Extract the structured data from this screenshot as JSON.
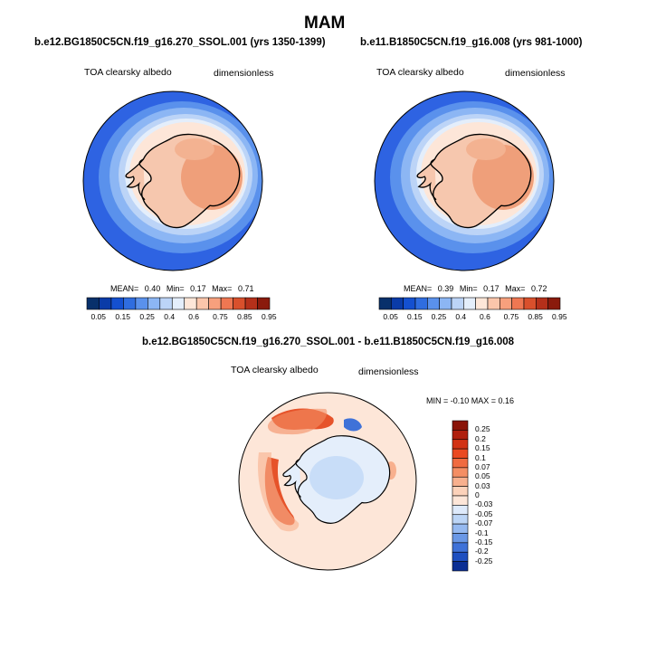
{
  "page_title": "MAM",
  "panels": [
    {
      "case_title": "b.e12.BG1850C5CN.f19_g16.270_SSOL.001 (yrs 1350-1399)",
      "variable": "TOA clearsky albedo",
      "units": "dimensionless",
      "stats": {
        "mean_label": "MEAN=",
        "mean": "0.40",
        "min_label": "Min=",
        "min": "0.17",
        "max_label": "Max=",
        "max": "0.71"
      }
    },
    {
      "case_title": "b.e11.B1850C5CN.f19_g16.008 (yrs 981-1000)",
      "variable": "TOA clearsky albedo",
      "units": "dimensionless",
      "stats": {
        "mean_label": "MEAN=",
        "mean": "0.39",
        "min_label": "Min=",
        "min": "0.17",
        "max_label": "Max=",
        "max": "0.72"
      }
    },
    {
      "case_title": "b.e12.BG1850C5CN.f19_g16.270_SSOL.001 - b.e11.B1850C5CN.f19_g16.008",
      "variable": "TOA clearsky albedo",
      "units": "dimensionless",
      "stats": {
        "text": "MIN = -0.10 MAX =  0.16"
      }
    }
  ],
  "colorbar_abs": {
    "labels": [
      "0.05",
      "0.15",
      "0.25",
      "0.4",
      "0.6",
      "0.75",
      "0.85",
      "0.95"
    ],
    "colors": [
      "#08306b",
      "#0a3ba8",
      "#1450d0",
      "#2f6de0",
      "#5a91ec",
      "#8cb6f4",
      "#bcd4f7",
      "#e4eefb",
      "#fde6d8",
      "#fbc6ab",
      "#f7a07d",
      "#ef7752",
      "#d9502c",
      "#b5301a",
      "#8a1a0c"
    ]
  },
  "colorbar_diff": {
    "labels": [
      "0.25",
      "0.2",
      "0.15",
      "0.1",
      "0.07",
      "0.05",
      "0.03",
      "0",
      "-0.03",
      "-0.05",
      "-0.07",
      "-0.1",
      "-0.15",
      "-0.2",
      "-0.25"
    ],
    "colors": [
      "#8a1408",
      "#b0200e",
      "#d23214",
      "#ea4a22",
      "#f06b40",
      "#f48e64",
      "#f8b08e",
      "#fcd2ba",
      "#fde6d8",
      "#deeafb",
      "#bcd5f6",
      "#95b9f0",
      "#6a98e6",
      "#3f72d8",
      "#1e4fc0",
      "#0a2e94"
    ]
  },
  "colors": {
    "ocean_abs": "#2e63e2",
    "land_abs": "#f6c7ae",
    "land_abs_hi": "#ef9f7a",
    "diff_background": "#fde6d8",
    "diff_positive": "#e6532a",
    "diff_negative": "#8fb4ee"
  }
}
